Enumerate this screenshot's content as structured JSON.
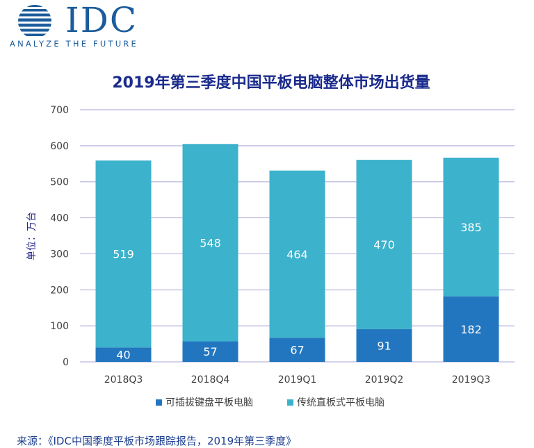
{
  "logo": {
    "name": "IDC",
    "tagline": "ANALYZE THE FUTURE"
  },
  "chart_data": {
    "type": "bar",
    "stacked": true,
    "title": "2019年第三季度中国平板电脑整体市场出货量",
    "ylabel": "单位：万台",
    "xlabel": "",
    "ylim": [
      0,
      700
    ],
    "yticks": [
      0,
      100,
      200,
      300,
      400,
      500,
      600,
      700
    ],
    "grid": true,
    "legend_position": "bottom",
    "categories": [
      "2018Q3",
      "2018Q4",
      "2019Q1",
      "2019Q2",
      "2019Q3"
    ],
    "series": [
      {
        "name": "可插拔键盘平板电脑",
        "color": "#2276bf",
        "values": [
          40,
          57,
          67,
          91,
          182
        ]
      },
      {
        "name": "传统直板式平板电脑",
        "color": "#3cb2cc",
        "values": [
          519,
          548,
          464,
          470,
          385
        ]
      }
    ]
  },
  "source": "来源：《IDC中国季度平板市场跟踪报告，2019年第三季度》",
  "colors": {
    "title": "#1a2a8c",
    "axis_text": "#404040",
    "grid": "#b8b8e0",
    "brand": "#1c5c9c"
  }
}
